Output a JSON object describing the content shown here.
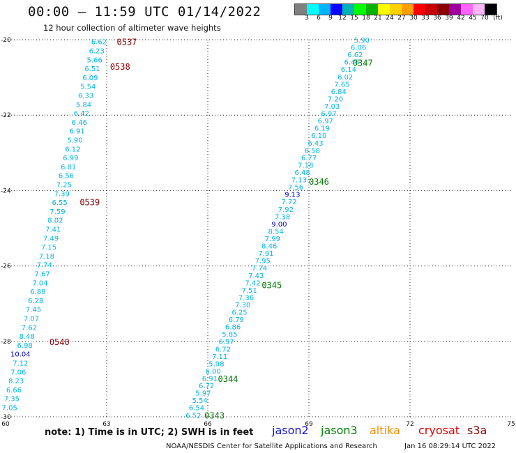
{
  "header": {
    "title": "00:00 — 11:59 UTC 01/14/2022",
    "subtitle": "12 hour collection of altimeter wave heights"
  },
  "colorbar": {
    "colors": [
      "#808080",
      "#00ffff",
      "#00b4ff",
      "#0000ff",
      "#00b4b4",
      "#00ff00",
      "#00b400",
      "#ffff00",
      "#ffd200",
      "#ffa000",
      "#ff0000",
      "#c80000",
      "#8b0000",
      "#a000a0",
      "#ff64ff",
      "#ffb4ff",
      "#000000"
    ],
    "labels": [
      "3",
      "6",
      "9",
      "12",
      "15",
      "18",
      "21",
      "24",
      "27",
      "30",
      "33",
      "36",
      "39",
      "42",
      "45",
      "70"
    ],
    "unit": "(ft)"
  },
  "map": {
    "lon_range": [
      60,
      75
    ],
    "lat_range": [
      -30,
      -20
    ],
    "x_tick_labels": [
      {
        "lon": 60,
        "label": "60"
      },
      {
        "lon": 63,
        "label": "63"
      },
      {
        "lon": 66,
        "label": "66"
      },
      {
        "lon": 69,
        "label": "69"
      },
      {
        "lon": 72,
        "label": "72"
      },
      {
        "lon": 75,
        "label": "75"
      }
    ],
    "y_tick_labels": [
      {
        "lat": -20,
        "label": "-20"
      },
      {
        "lat": -22,
        "label": "-22"
      },
      {
        "lat": -24,
        "label": "-24"
      },
      {
        "lat": -26,
        "label": "-26"
      },
      {
        "lat": -28,
        "label": "-28"
      },
      {
        "lat": -30,
        "label": "-30"
      }
    ],
    "time_labels": [
      {
        "text": "0537",
        "lon": 63.3,
        "lat": -20.05,
        "color": "#8b0000"
      },
      {
        "text": "0538",
        "lon": 63.1,
        "lat": -20.7,
        "color": "#8b0000"
      },
      {
        "text": "0539",
        "lon": 62.2,
        "lat": -24.3,
        "color": "#8b0000"
      },
      {
        "text": "0540",
        "lon": 61.3,
        "lat": -28.0,
        "color": "#8b0000"
      },
      {
        "text": "0347",
        "lon": 70.3,
        "lat": -20.6,
        "color": "#007800"
      },
      {
        "text": "0346",
        "lon": 69.0,
        "lat": -23.75,
        "color": "#007800"
      },
      {
        "text": "0345",
        "lon": 67.6,
        "lat": -26.5,
        "color": "#007800"
      },
      {
        "text": "0344",
        "lon": 66.3,
        "lat": -28.98,
        "color": "#007800"
      },
      {
        "text": "0343",
        "lon": 65.9,
        "lat": -29.95,
        "color": "#007800"
      }
    ],
    "tracks": [
      {
        "name": "cryosat",
        "lon_start": 63.0,
        "lat_start": -20.05,
        "lon_end": 60.35,
        "lat_end": -29.75,
        "values": [
          "6.62",
          "6.23",
          "5.66",
          "6.51",
          "6.09",
          "5.54",
          "6.33",
          "5.84",
          "6.42",
          "6.46",
          "6.91",
          "5.90",
          "6.12",
          "6.99",
          "6.81",
          "6.56",
          "7.25",
          "7.39",
          "6.55",
          "7.59",
          "8.02",
          "7.41",
          "7.49",
          "7.15",
          "7.18",
          "7.74",
          "7.67",
          "7.04",
          "6.89",
          "6.28",
          "7.45",
          "7.07",
          "7.62",
          "8.48",
          "6.98",
          "10.04",
          "7.12",
          "7.06",
          "8.23",
          "6.66",
          "7.35",
          "7.05"
        ]
      },
      {
        "name": "jason3",
        "lon_start": 70.8,
        "lat_start": -20.0,
        "lon_end": 65.8,
        "lat_end": -29.95,
        "values": [
          "5.90",
          "6.06",
          "6.62",
          "6.45",
          "6.14",
          "6.02",
          "7.65",
          "6.84",
          "7.20",
          "7.03",
          "6.97",
          "6.97",
          "6.19",
          "6.10",
          "6.43",
          "6.58",
          "6.77",
          "7.18",
          "6.48",
          "7.13",
          "7.56",
          "9.13",
          "7.72",
          "7.92",
          "7.38",
          "9.00",
          "8.54",
          "7.99",
          "8.46",
          "7.91",
          "7.95",
          "7.74",
          "7.43",
          "7.42",
          "7.51",
          "7.36",
          "7.30",
          "6.25",
          "6.79",
          "6.86",
          "5.85",
          "6.97",
          "6.72",
          "7.11",
          "5.98",
          "6.00",
          "6.91",
          "6.72",
          "5.97",
          "5.54",
          "6.54",
          "6.52"
        ]
      }
    ]
  },
  "footer": {
    "note": "note: 1) Time is in UTC; 2) SWH is in feet",
    "legend": [
      {
        "label": "jason2",
        "color": "#1010d0"
      },
      {
        "label": "jason3",
        "color": "#008000"
      },
      {
        "label": "altika",
        "color": "#ff8c00"
      },
      {
        "label": "cryosat",
        "color": "#dd0000"
      },
      {
        "label": "s3a",
        "color": "#8b0000"
      }
    ],
    "credit": "NOAA/NESDIS Center for Satellite Applications and Research",
    "timestamp": "Jan 16 08:29:14 UTC 2022"
  }
}
